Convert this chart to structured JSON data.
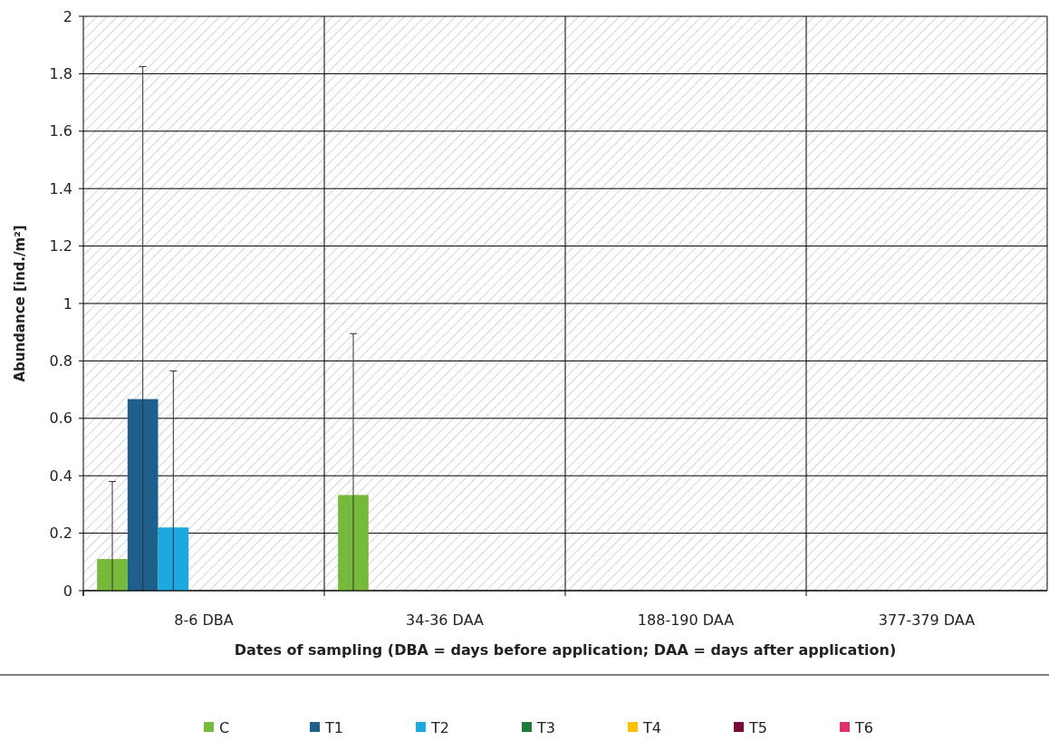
{
  "chart_data": {
    "type": "bar",
    "xlabel": "Dates of sampling  (DBA = days before application;  DAA = days after application)",
    "ylabel": "Abundance  [ind./m²]",
    "categories": [
      "8-6 DBA",
      "34-36 DAA",
      "188-190 DAA",
      "377-379 DAA"
    ],
    "ylim": [
      0,
      2
    ],
    "yticks": [
      0,
      0.2,
      0.4,
      0.6,
      0.8,
      1,
      1.2,
      1.4,
      1.6,
      1.8,
      2
    ],
    "grid": true,
    "legend": "bottom",
    "series": [
      {
        "name": "C",
        "color": "#77b93a",
        "values": [
          0.11,
          0.333,
          0,
          0
        ],
        "errors": [
          [
            0,
            0.38
          ],
          [
            0,
            0.895
          ],
          null,
          null
        ]
      },
      {
        "name": "T1",
        "color": "#1f5f8b",
        "values": [
          0.667,
          0,
          0,
          0
        ],
        "errors": [
          [
            0,
            1.825
          ],
          null,
          null,
          null
        ]
      },
      {
        "name": "T2",
        "color": "#1ca9e0",
        "values": [
          0.22,
          0,
          0,
          0
        ],
        "errors": [
          [
            0,
            0.765
          ],
          null,
          null,
          null
        ]
      },
      {
        "name": "T3",
        "color": "#1e7b3a",
        "values": [
          0,
          0,
          0,
          0
        ]
      },
      {
        "name": "T4",
        "color": "#ffc000",
        "values": [
          0,
          0,
          0,
          0
        ]
      },
      {
        "name": "T5",
        "color": "#7b0c3a",
        "values": [
          0,
          0,
          0,
          0
        ]
      },
      {
        "name": "T6",
        "color": "#e0306e",
        "values": [
          0,
          0,
          0,
          0
        ]
      }
    ]
  }
}
